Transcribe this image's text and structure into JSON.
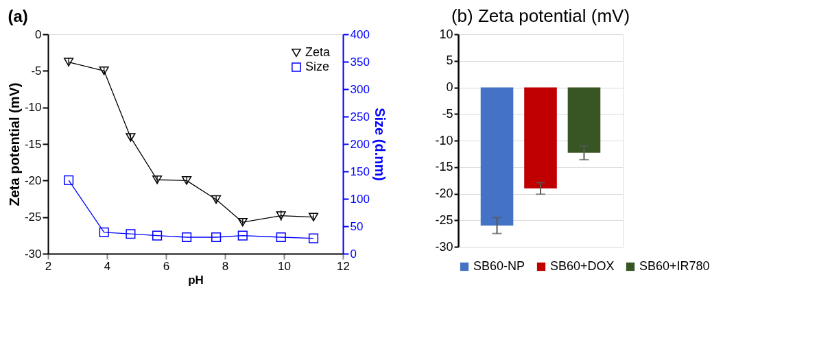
{
  "chart_data": [
    {
      "type": "line",
      "title": "(a)",
      "xlabel": "pH",
      "ylabel": "Zeta potential (mV)",
      "y2label": "Size (d.nm)",
      "x": [
        2.7,
        3.9,
        4.8,
        5.7,
        6.7,
        7.7,
        8.6,
        9.9,
        11.0
      ],
      "series": [
        {
          "name": "Zeta",
          "color": "#000000",
          "marker": "triangle",
          "values": [
            -3.8,
            -5.0,
            -14.1,
            -19.9,
            -20.0,
            -22.6,
            -25.7,
            -24.8,
            -25.0
          ],
          "errors": [
            0.6,
            0.5,
            0.4,
            0.5,
            0.5,
            0.5,
            0.5,
            0.7,
            0.4
          ]
        },
        {
          "name": "Size",
          "color": "#0000ff",
          "marker": "square",
          "axis": "y2",
          "values": [
            134,
            39,
            36,
            33,
            30,
            30,
            33,
            30,
            28
          ]
        }
      ],
      "xlim": [
        2,
        12
      ],
      "xticks": [
        2,
        4,
        6,
        8,
        10,
        12
      ],
      "ylim": [
        -30,
        0
      ],
      "yticks": [
        -30,
        -25,
        -20,
        -15,
        -10,
        -5,
        0
      ],
      "y2lim": [
        0,
        400
      ],
      "y2ticks": [
        0,
        50,
        100,
        150,
        200,
        250,
        300,
        350,
        400
      ],
      "legend": "top right",
      "grid": false,
      "line_style": "solid"
    },
    {
      "type": "bar",
      "title": "(b) Zeta potential (mV)",
      "categories": [
        null
      ],
      "series": [
        {
          "name": "SB60-NP",
          "color": "#4472c4",
          "values": [
            -26.0
          ],
          "errors": [
            1.5
          ]
        },
        {
          "name": "SB60+DOX",
          "color": "#c00000",
          "values": [
            -19.0
          ],
          "errors": [
            1.1
          ]
        },
        {
          "name": "SB60+IR780",
          "color": "#375623",
          "values": [
            -12.3
          ],
          "errors": [
            1.3
          ]
        }
      ],
      "ylim": [
        -30,
        10
      ],
      "yticks": [
        -30,
        -25,
        -20,
        -15,
        -10,
        -5,
        0,
        5,
        10
      ],
      "grid": "y",
      "legend": "bottom"
    }
  ]
}
